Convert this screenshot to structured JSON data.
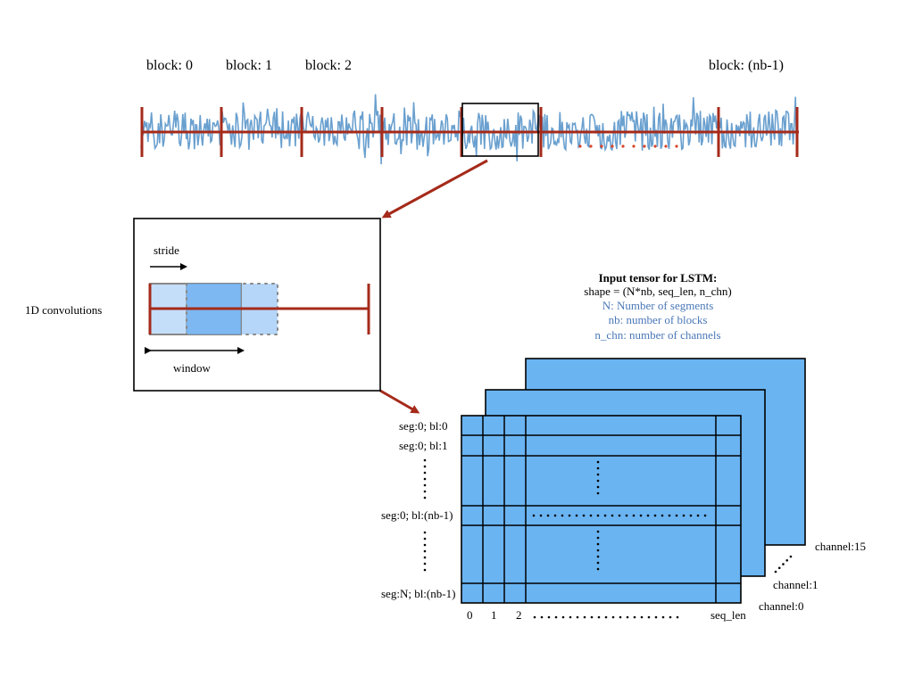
{
  "signal": {
    "block_labels": [
      "block: 0",
      "block: 1",
      "block: 2",
      "block: (nb-1)"
    ]
  },
  "conv": {
    "side_label": "1D convolutions",
    "stride_label": "stride",
    "window_label": "window"
  },
  "tensor_info": {
    "title": "Input tensor for LSTM:",
    "shape": "shape = (N*nb, seq_len, n_chn)",
    "legend": [
      "N: Number of segments",
      "nb: number of blocks",
      "n_chn: number of channels"
    ]
  },
  "row_labels": [
    "seg:0; bl:0",
    "seg:0; bl:1",
    "seg:0; bl:(nb-1)",
    "seg:N; bl:(nb-1)"
  ],
  "col_labels": [
    "0",
    "1",
    "2",
    "seq_len"
  ],
  "channel_labels": [
    "channel:15",
    "channel:1",
    "channel:0"
  ],
  "colors": {
    "signal": "#6aa0cf",
    "axis": "#a52a1a",
    "tensor_face": "#6ab4f2",
    "window_fill": "#9cc8f5",
    "window_overlap": "#6fb0f0"
  }
}
